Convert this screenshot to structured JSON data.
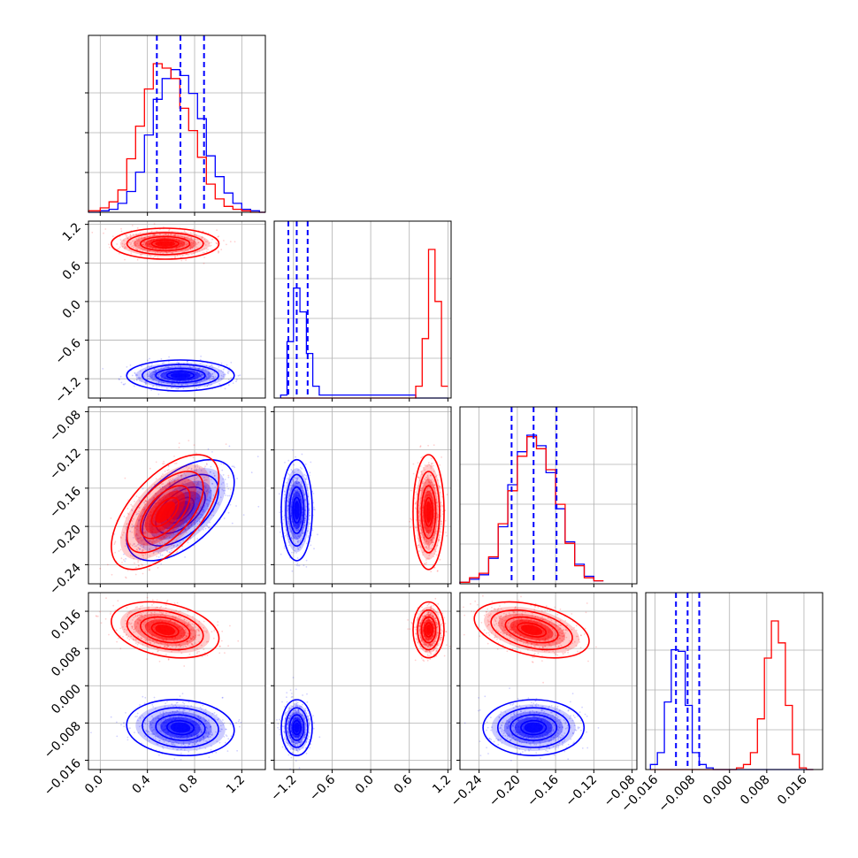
{
  "chart_data": {
    "type": "corner",
    "title": "",
    "grid": true,
    "legend": "none",
    "colors": {
      "series_a": "#ff0000",
      "series_b": "#0000ff",
      "quantile_line": "#0000ff",
      "grid": "#b0b0b0"
    },
    "series": [
      {
        "name": "",
        "color": "#ff0000",
        "mean": [
          0.55,
          0.9,
          -0.185,
          0.012
        ],
        "std": [
          0.19,
          0.1,
          0.025,
          0.0025
        ],
        "corr": [
          [
            1,
            0,
            0.6,
            -0.3
          ],
          [
            0,
            1,
            0,
            0
          ],
          [
            0.6,
            0,
            1,
            -0.4
          ],
          [
            -0.3,
            0,
            -0.4,
            1
          ]
        ]
      },
      {
        "name": "",
        "color": "#0000ff",
        "mean": [
          0.68,
          -1.15,
          -0.183,
          -0.009
        ],
        "std": [
          0.19,
          0.1,
          0.022,
          0.0025
        ],
        "corr": [
          [
            1,
            0,
            0.55,
            -0.1
          ],
          [
            0,
            1,
            0,
            0
          ],
          [
            0.55,
            0,
            1,
            0
          ],
          [
            -0.1,
            0,
            0,
            1
          ]
        ]
      }
    ],
    "parameters": [
      {
        "lim": [
          -0.1,
          1.4
        ],
        "ticks": [
          "0.0",
          "0.4",
          "0.8",
          "1.2"
        ],
        "tick_values": [
          0.0,
          0.4,
          0.8,
          1.2
        ],
        "quantiles": [
          0.48,
          0.68,
          0.88
        ]
      },
      {
        "lim": [
          -1.5,
          1.25
        ],
        "ticks": [
          "−1.2",
          "−0.6",
          "0.0",
          "0.6",
          "1.2"
        ],
        "tick_values": [
          -1.2,
          -0.6,
          0.0,
          0.6,
          1.2
        ],
        "quantiles": [
          -1.28,
          -1.15,
          -0.98
        ]
      },
      {
        "lim": [
          -0.26,
          -0.075
        ],
        "ticks": [
          "−0.24",
          "−0.20",
          "−0.16",
          "−0.12",
          "−0.08"
        ],
        "tick_values": [
          -0.24,
          -0.2,
          -0.16,
          -0.12,
          -0.08
        ],
        "quantiles": [
          -0.206,
          -0.183,
          -0.159
        ]
      },
      {
        "lim": [
          -0.018,
          0.02
        ],
        "ticks": [
          "−0.016",
          "−0.008",
          "0.000",
          "0.008",
          "0.016"
        ],
        "tick_values": [
          -0.016,
          -0.008,
          0.0,
          0.008,
          0.016
        ],
        "quantiles": [
          -0.0115,
          -0.009,
          -0.0065
        ]
      }
    ],
    "y_ticks": {
      "1": {
        "values": [
          -1.2,
          -0.6,
          0.0,
          0.6,
          1.2
        ],
        "labels": [
          "−1.2",
          "−0.6",
          "0.0",
          "0.6",
          "1.2"
        ]
      },
      "2": {
        "values": [
          -0.24,
          -0.2,
          -0.16,
          -0.12,
          -0.08
        ],
        "labels": [
          "−0.24",
          "−0.20",
          "−0.16",
          "−0.12",
          "−0.08"
        ]
      },
      "3": {
        "values": [
          -0.016,
          -0.008,
          0.0,
          0.008,
          0.016
        ],
        "labels": [
          "−0.016",
          "−0.008",
          "0.000",
          "0.008",
          "0.016"
        ]
      }
    },
    "histograms": [
      {
        "param": 0,
        "bin_edges": [
          -0.1,
          0.0,
          0.075,
          0.15,
          0.225,
          0.3,
          0.375,
          0.45,
          0.525,
          0.6,
          0.675,
          0.75,
          0.825,
          0.9,
          0.975,
          1.05,
          1.125,
          1.2,
          1.275,
          1.35,
          1.4
        ],
        "counts": {
          "red": [
            0.01,
            0.03,
            0.07,
            0.15,
            0.36,
            0.58,
            0.83,
            1.0,
            0.97,
            0.9,
            0.7,
            0.55,
            0.37,
            0.19,
            0.09,
            0.04,
            0.02,
            0.01,
            0.0,
            0.0
          ],
          "blue": [
            0.0,
            0.01,
            0.02,
            0.06,
            0.14,
            0.27,
            0.52,
            0.76,
            0.9,
            0.96,
            0.92,
            0.8,
            0.63,
            0.38,
            0.24,
            0.13,
            0.06,
            0.02,
            0.01,
            0.0
          ]
        }
      },
      {
        "param": 1,
        "bin_edges": [
          -1.4,
          -1.3,
          -1.2,
          -1.1,
          -1.0,
          -0.9,
          -0.8,
          0.7,
          0.8,
          0.9,
          1.0,
          1.1,
          1.2
        ],
        "counts": {
          "red": [
            0,
            0,
            0,
            0,
            0,
            0,
            0,
            0.08,
            0.4,
            1.0,
            0.65,
            0.08
          ],
          "blue": [
            0.02,
            0.38,
            0.74,
            0.58,
            0.3,
            0.08,
            0.02,
            0,
            0,
            0,
            0,
            0
          ]
        }
      },
      {
        "param": 2,
        "bin_edges": [
          -0.26,
          -0.25,
          -0.24,
          -0.23,
          -0.22,
          -0.21,
          -0.2,
          -0.19,
          -0.18,
          -0.17,
          -0.16,
          -0.15,
          -0.14,
          -0.13,
          -0.12,
          -0.11
        ],
        "counts": {
          "red": [
            0.01,
            0.04,
            0.07,
            0.18,
            0.4,
            0.62,
            0.85,
            0.98,
            0.9,
            0.76,
            0.53,
            0.27,
            0.12,
            0.04,
            0.02
          ],
          "blue": [
            0.01,
            0.03,
            0.06,
            0.17,
            0.38,
            0.66,
            0.88,
            0.99,
            0.92,
            0.74,
            0.5,
            0.28,
            0.13,
            0.05,
            0.02
          ]
        }
      },
      {
        "param": 3,
        "bin_edges": [
          -0.017,
          -0.0155,
          -0.014,
          -0.0125,
          -0.011,
          -0.0095,
          -0.008,
          -0.0065,
          -0.005,
          -0.0035,
          -0.002,
          0.0015,
          0.003,
          0.0045,
          0.006,
          0.0075,
          0.009,
          0.0105,
          0.012,
          0.0135,
          0.015,
          0.0165,
          0.018
        ],
        "counts": {
          "red": [
            0,
            0,
            0,
            0,
            0,
            0,
            0,
            0,
            0,
            0,
            0,
            0.01,
            0.03,
            0.1,
            0.3,
            0.66,
            0.88,
            0.75,
            0.38,
            0.09,
            0.01,
            0
          ],
          "blue": [
            0.03,
            0.1,
            0.4,
            0.71,
            0.7,
            0.38,
            0.1,
            0.03,
            0.01,
            0,
            0,
            0,
            0,
            0,
            0,
            0,
            0,
            0,
            0,
            0,
            0,
            0
          ]
        }
      }
    ]
  }
}
